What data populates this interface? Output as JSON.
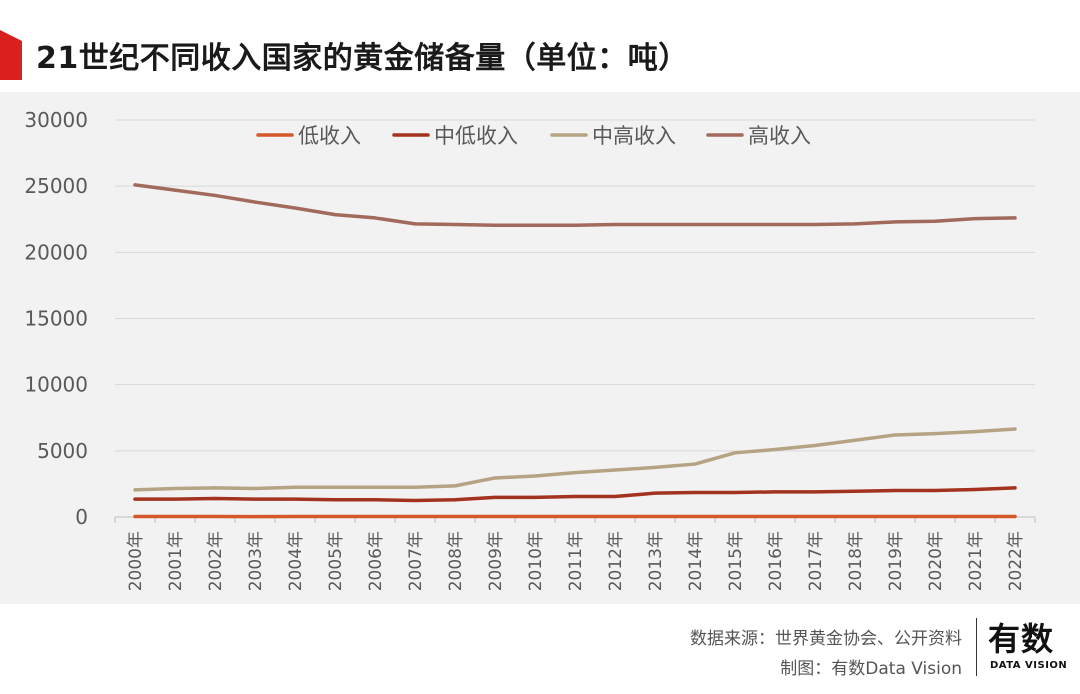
{
  "header": {
    "title": "21世纪不同收入国家的黄金储备量（单位：吨）"
  },
  "footer": {
    "source": "数据来源：世界黄金协会、公开资料",
    "credit": "制图：有数Data Vision",
    "logo_main": "有数",
    "logo_sub": "DATA VISION"
  },
  "chart_data": {
    "type": "line",
    "title": "21世纪不同收入国家的黄金储备量（单位：吨）",
    "xlabel": "",
    "ylabel": "",
    "ylim": [
      0,
      30000
    ],
    "yticks": [
      "0",
      "5000",
      "10000",
      "15000",
      "20000",
      "25000",
      "30000"
    ],
    "grid": true,
    "legend_position": "top",
    "categories": [
      "2000年",
      "2001年",
      "2002年",
      "2003年",
      "2004年",
      "2005年",
      "2006年",
      "2007年",
      "2008年",
      "2009年",
      "2010年",
      "2011年",
      "2012年",
      "2013年",
      "2014年",
      "2015年",
      "2016年",
      "2017年",
      "2018年",
      "2019年",
      "2020年",
      "2021年",
      "2022年"
    ],
    "series": [
      {
        "name": "低收入",
        "color": "#d4582a",
        "values": [
          40,
          40,
          40,
          30,
          40,
          40,
          40,
          40,
          40,
          40,
          40,
          40,
          40,
          40,
          40,
          40,
          40,
          40,
          40,
          40,
          40,
          40,
          40
        ]
      },
      {
        "name": "中低收入",
        "color": "#a3331e",
        "values": [
          1350,
          1350,
          1400,
          1350,
          1350,
          1300,
          1300,
          1250,
          1300,
          1480,
          1480,
          1550,
          1550,
          1800,
          1850,
          1850,
          1900,
          1900,
          1950,
          2000,
          2000,
          2080,
          2200
        ]
      },
      {
        "name": "中高收入",
        "color": "#b5a383",
        "values": [
          2050,
          2150,
          2200,
          2150,
          2250,
          2250,
          2250,
          2250,
          2350,
          2950,
          3100,
          3350,
          3550,
          3750,
          4000,
          4850,
          5100,
          5400,
          5800,
          6200,
          6300,
          6450,
          6650
        ]
      },
      {
        "name": "高收入",
        "color": "#a26a5c",
        "values": [
          25100,
          24700,
          24300,
          23800,
          23350,
          22850,
          22600,
          22150,
          22100,
          22050,
          22050,
          22050,
          22100,
          22100,
          22100,
          22100,
          22100,
          22100,
          22150,
          22300,
          22350,
          22550,
          22600
        ]
      }
    ]
  }
}
